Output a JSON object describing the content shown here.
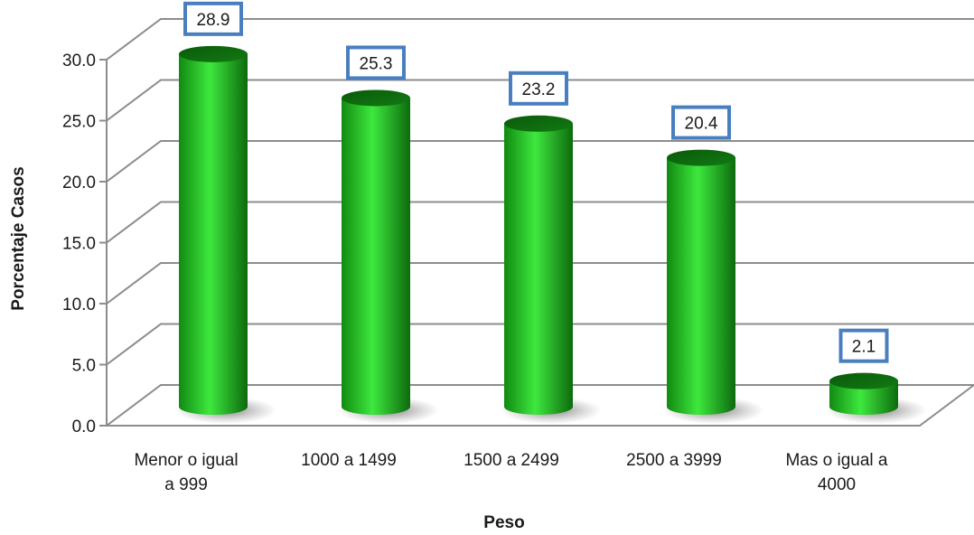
{
  "chart_data": {
    "type": "bar",
    "style": "3d-cylinder",
    "xlabel": "Peso",
    "ylabel": "Porcentaje Casos",
    "categories": [
      [
        "Menor o igual",
        "a 999"
      ],
      [
        "1000 a 1499"
      ],
      [
        "1500 a 2499"
      ],
      [
        "2500 a 3999"
      ],
      [
        "Mas o igual a",
        "4000"
      ]
    ],
    "values": [
      28.9,
      25.3,
      23.2,
      20.4,
      2.1
    ],
    "data_labels": [
      "28.9",
      "25.3",
      "23.2",
      "20.4",
      "2.1"
    ],
    "yticks": [
      "0.0",
      "5.0",
      "10.0",
      "15.0",
      "20.0",
      "25.0",
      "30.0"
    ],
    "ylim": [
      0,
      30
    ],
    "grid": true,
    "legend": "none",
    "colors": {
      "bar_light": "#3ee83e",
      "bar_mid": "#1faa1f",
      "bar_dark": "#0b5e0b",
      "label_border": "#4a7fbf",
      "grid": "#8c8c8c"
    }
  }
}
